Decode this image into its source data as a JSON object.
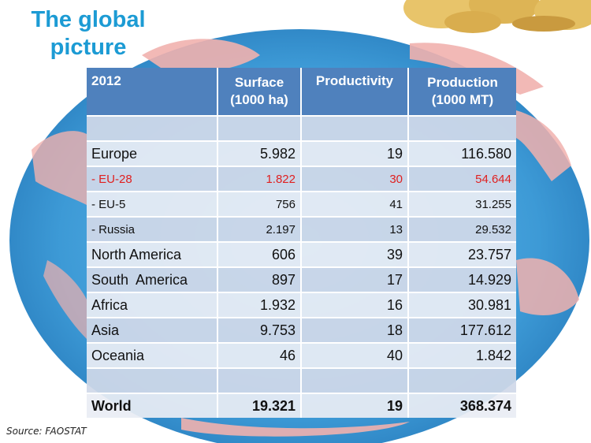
{
  "page": {
    "title_line1": "The global",
    "title_line2": "picture",
    "source": "Source: FAOSTAT"
  },
  "colors": {
    "header_blue": "#4f81bd",
    "title_blue": "#1c9bd4",
    "highlight_red": "#e02020",
    "ocean_blue": "#4aa3da",
    "land_pink": "#f1b1ae"
  },
  "table": {
    "headers": {
      "year": "2012",
      "surface_line1": "Surface",
      "surface_line2": "(1000 ha)",
      "productivity": "Productivity",
      "production_line1": "Production",
      "production_line2": "(1000 MT)"
    },
    "rows": [
      {
        "region": "",
        "surface": "",
        "productivity": "",
        "production": ""
      },
      {
        "region": "Europe",
        "surface": "5.982",
        "productivity": "19",
        "production": "116.580"
      },
      {
        "region": "- EU-28",
        "surface": "1.822",
        "productivity": "30",
        "production": "54.644"
      },
      {
        "region": "- EU-5",
        "surface": "756",
        "productivity": "41",
        "production": "31.255"
      },
      {
        "region": "- Russia",
        "surface": "2.197",
        "productivity": "13",
        "production": "29.532"
      },
      {
        "region": "North America",
        "surface": "606",
        "productivity": "39",
        "production": "23.757"
      },
      {
        "region": "South  America",
        "surface": "897",
        "productivity": "17",
        "production": "14.929"
      },
      {
        "region": "Africa",
        "surface": "1.932",
        "productivity": "16",
        "production": "30.981"
      },
      {
        "region": "Asia",
        "surface": "9.753",
        "productivity": "18",
        "production": "177.612"
      },
      {
        "region": "Oceania",
        "surface": "46",
        "productivity": "40",
        "production": "1.842"
      },
      {
        "region": "",
        "surface": "",
        "productivity": "",
        "production": ""
      },
      {
        "region": "World",
        "surface": "19.321",
        "productivity": "19",
        "production": "368.374"
      }
    ]
  }
}
